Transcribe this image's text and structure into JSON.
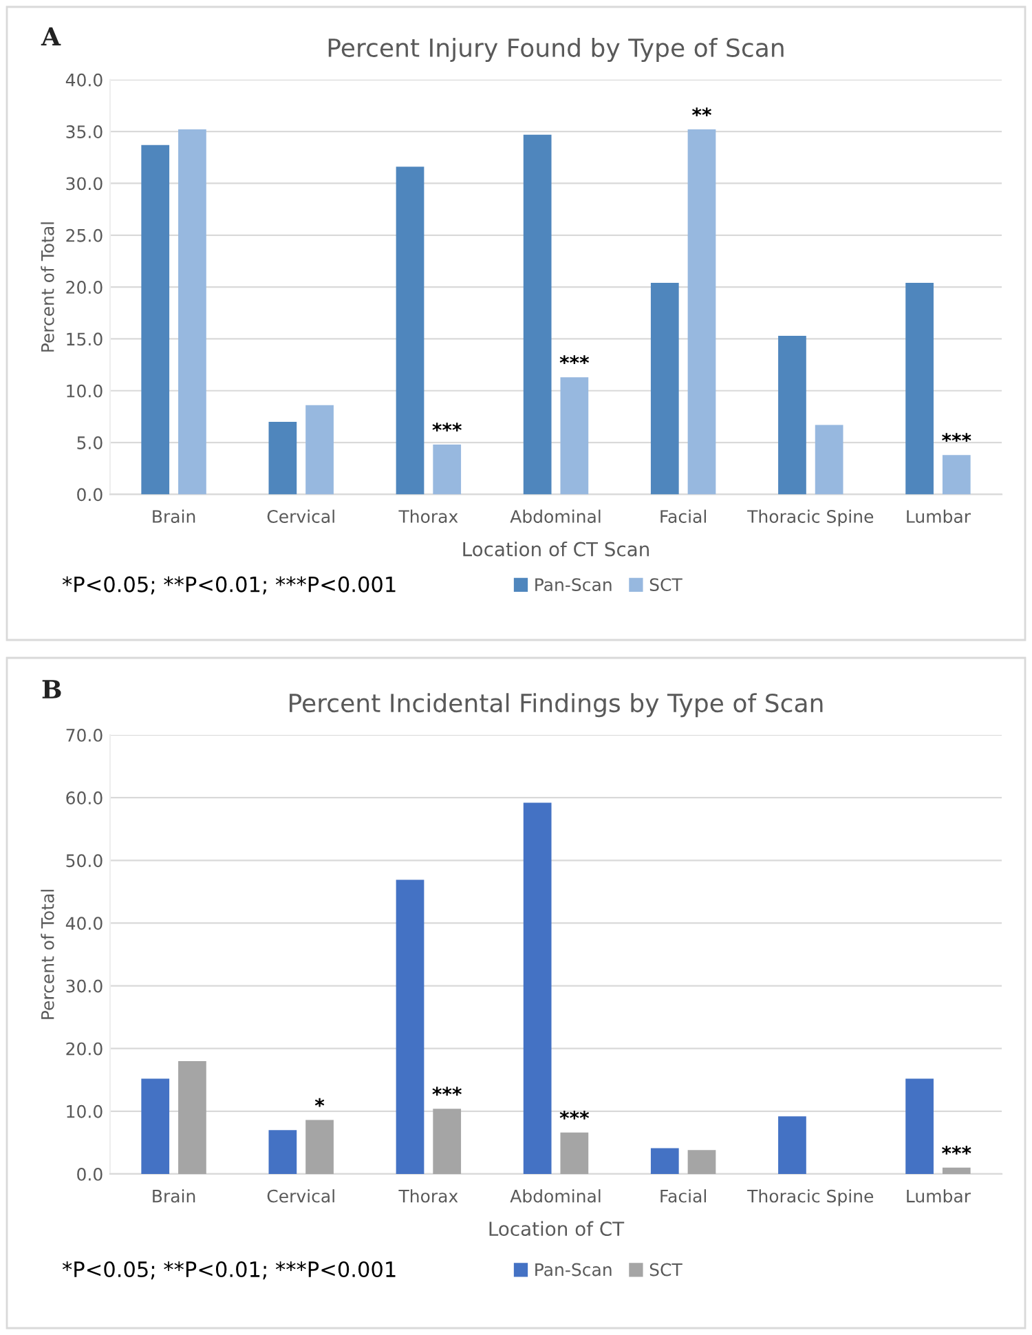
{
  "chart_data": [
    {
      "type": "bar",
      "title": "Percent Injury Found by Type of Scan",
      "xlabel": "Location of CT Scan",
      "ylabel": "Percent of Total",
      "categories": [
        "Brain",
        "Cervical",
        "Thorax",
        "Abdominal",
        "Facial",
        "Thoracic Spine",
        "Lumbar"
      ],
      "series": [
        {
          "name": "Pan-Scan",
          "color": "#4f86bd",
          "values": [
            33.7,
            7.0,
            31.6,
            34.7,
            20.4,
            15.3,
            20.4
          ]
        },
        {
          "name": "SCT",
          "color": "#97b8df",
          "values": [
            35.2,
            8.6,
            4.8,
            11.3,
            35.2,
            6.7,
            3.8
          ]
        }
      ],
      "ylim": [
        0,
        40
      ],
      "yticks": [
        {
          "value": 0,
          "label": "0.0"
        },
        {
          "value": 5,
          "label": "5.0"
        },
        {
          "value": 10,
          "label": "10.0"
        },
        {
          "value": 15,
          "label": "15.0"
        },
        {
          "value": 20,
          "label": "20.0"
        },
        {
          "value": 25,
          "label": "25.0"
        },
        {
          "value": 30,
          "label": "30.0"
        },
        {
          "value": 35,
          "label": "35.0"
        },
        {
          "value": 40,
          "label": "40.0"
        }
      ],
      "grid": "y",
      "legend": "bottom",
      "annotations": [
        "A",
        "*P<0.05; **P<0.01; ***P<0.001",
        {
          "text": "***",
          "x": "Thorax",
          "y": 4.8
        },
        {
          "text": "***",
          "x": "Abdominal",
          "y": 11.3
        },
        {
          "text": "**",
          "x": "Facial",
          "y": 35.2
        },
        {
          "text": "***",
          "x": "Lumbar",
          "y": 3.8
        }
      ]
    },
    {
      "type": "bar",
      "title": "Percent Incidental Findings by Type of Scan",
      "xlabel": "Location of CT",
      "ylabel": "Percent of Total",
      "categories": [
        "Brain",
        "Cervical",
        "Thorax",
        "Abdominal",
        "Facial",
        "Thoracic Spine",
        "Lumbar"
      ],
      "series": [
        {
          "name": "Pan-Scan",
          "color": "#4472c4",
          "values": [
            15.2,
            7.0,
            46.9,
            59.2,
            4.1,
            9.2,
            15.2
          ]
        },
        {
          "name": "SCT",
          "color": "#a5a5a5",
          "values": [
            18.0,
            8.6,
            10.4,
            6.6,
            3.8,
            0.0,
            1.0
          ]
        }
      ],
      "ylim": [
        0,
        70
      ],
      "yticks": [
        {
          "value": 0,
          "label": "0.0"
        },
        {
          "value": 10,
          "label": "10.0"
        },
        {
          "value": 20,
          "label": "20.0"
        },
        {
          "value": 30,
          "label": "30.0"
        },
        {
          "value": 40,
          "label": "40.0"
        },
        {
          "value": 50,
          "label": "50.0"
        },
        {
          "value": 60,
          "label": "60.0"
        },
        {
          "value": 70,
          "label": "70.0"
        }
      ],
      "grid": "y",
      "legend": "bottom",
      "annotations": [
        "B",
        "*P<0.05; **P<0.01; ***P<0.001",
        {
          "text": "*",
          "x": "Cervical",
          "y": 8.6
        },
        {
          "text": "***",
          "x": "Thorax",
          "y": 10.4
        },
        {
          "text": "***",
          "x": "Abdominal",
          "y": 6.6
        },
        {
          "text": "***",
          "x": "Lumbar",
          "y": 1.0
        }
      ]
    }
  ]
}
